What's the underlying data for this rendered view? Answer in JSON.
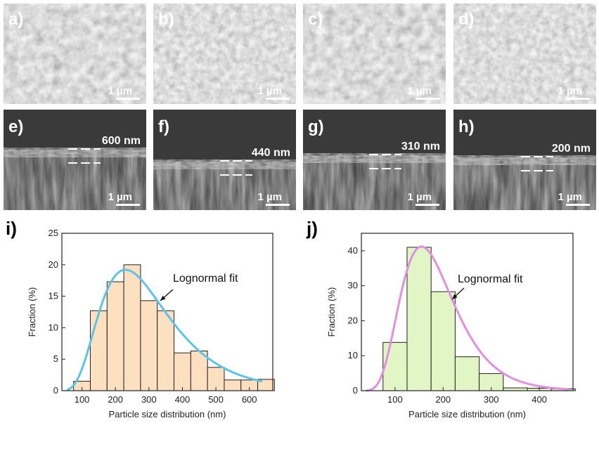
{
  "panels": {
    "top": [
      {
        "letter": "a)",
        "scale": "1 µm"
      },
      {
        "letter": "b)",
        "scale": "1 µm"
      },
      {
        "letter": "c)",
        "scale": "1 µm"
      },
      {
        "letter": "d)",
        "scale": "1 µm"
      }
    ],
    "cross": [
      {
        "letter": "e)",
        "scale": "1 µm",
        "thickness": "600 nm"
      },
      {
        "letter": "f)",
        "scale": "1 µm",
        "thickness": "440 nm"
      },
      {
        "letter": "g)",
        "scale": "1 µm",
        "thickness": "310 nm"
      },
      {
        "letter": "h)",
        "scale": "1 µm",
        "thickness": "200 nm"
      }
    ]
  },
  "chart_data": [
    {
      "panel": "i)",
      "type": "bar",
      "bin_centers": [
        100,
        150,
        200,
        250,
        300,
        350,
        400,
        450,
        500,
        550,
        600,
        650
      ],
      "values": [
        1.5,
        12.7,
        17.3,
        20.0,
        14.3,
        12.7,
        6.0,
        6.3,
        3.7,
        1.7,
        1.7,
        1.8
      ],
      "bin_width": 50,
      "fit": {
        "type": "lognormal",
        "label": "Lognormal fit",
        "peak_x": 230,
        "peak_y": 19.2
      },
      "xlabel": "Particle size distribution (nm)",
      "ylabel": "Fraction (%)",
      "xlim": [
        40,
        670
      ],
      "ylim": [
        0,
        25
      ],
      "xticks": [
        100,
        200,
        300,
        400,
        500,
        600
      ],
      "yticks": [
        0,
        5,
        10,
        15,
        20,
        25
      ],
      "colors": {
        "bar": "#fde0c0",
        "fit": "#5cc4ea"
      }
    },
    {
      "panel": "j)",
      "type": "bar",
      "bin_centers": [
        100,
        150,
        200,
        250,
        300,
        350,
        400,
        450
      ],
      "values": [
        13.8,
        41.0,
        28.3,
        9.7,
        4.9,
        0.8,
        0.7,
        0.5
      ],
      "bin_width": 50,
      "fit": {
        "type": "lognormal",
        "label": "Lognormal fit",
        "peak_x": 155,
        "peak_y": 41.2
      },
      "xlabel": "Particle size distribution (nm)",
      "ylabel": "Fraction (%)",
      "xlim": [
        30,
        470
      ],
      "ylim": [
        0,
        45
      ],
      "xticks": [
        100,
        200,
        300,
        400
      ],
      "yticks": [
        0,
        10,
        20,
        30,
        40
      ],
      "colors": {
        "bar": "#e2f5c5",
        "fit": "#e38ee0"
      }
    }
  ]
}
